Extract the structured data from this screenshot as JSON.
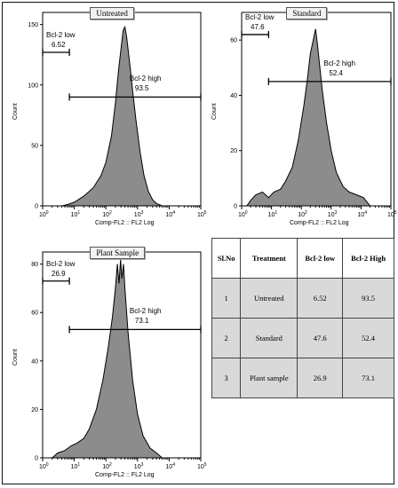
{
  "chart_data": [
    {
      "type": "area",
      "panel_title": "Untreated",
      "xlabel": "Comp-FL2 :: FL2 Log",
      "ylabel": "Count",
      "xscale": "log",
      "xlim": [
        1,
        100000
      ],
      "ylim": [
        0,
        160
      ],
      "yticks": [
        0,
        50,
        100,
        150
      ],
      "xtick_labels": [
        "10",
        "10",
        "10",
        "10",
        "10"
      ],
      "xtick_exps": [
        "0",
        "1",
        "2",
        "3",
        "4"
      ],
      "x_end_label": {
        "base": "10",
        "exp": "5"
      },
      "x": [
        4,
        6,
        10,
        20,
        40,
        70,
        100,
        150,
        200,
        250,
        300,
        350,
        400,
        450,
        500,
        600,
        700,
        900,
        1200,
        1600,
        2200,
        3000,
        4000,
        6000
      ],
      "y": [
        0,
        1,
        3,
        8,
        15,
        25,
        36,
        58,
        85,
        112,
        130,
        145,
        148,
        140,
        130,
        112,
        95,
        70,
        45,
        25,
        12,
        5,
        2,
        0
      ],
      "gates": [
        {
          "name": "Bcl-2 low",
          "value": "6.52",
          "x_range": [
            1,
            7
          ],
          "y": 127
        },
        {
          "name": "Bcl-2 high",
          "value": "93.5",
          "x_range": [
            7,
            100000
          ],
          "y": 90
        }
      ]
    },
    {
      "type": "area",
      "panel_title": "Standard",
      "xlabel": "Comp-FL2 :: FL2 Log",
      "ylabel": "Count",
      "xscale": "log",
      "xlim": [
        1,
        100000
      ],
      "ylim": [
        0,
        70
      ],
      "yticks": [
        0,
        20,
        40,
        60
      ],
      "xtick_labels": [
        "10",
        "10",
        "10",
        "10",
        "10"
      ],
      "xtick_exps": [
        "0",
        "1",
        "2",
        "3",
        "4"
      ],
      "x_end_label": {
        "base": "10",
        "exp": "5"
      },
      "x": [
        1.5,
        2,
        3,
        5,
        8,
        12,
        20,
        30,
        50,
        80,
        120,
        160,
        200,
        250,
        300,
        350,
        400,
        500,
        700,
        1000,
        1500,
        2500,
        4000,
        7000,
        12000,
        20000
      ],
      "y": [
        0,
        2,
        4,
        5,
        3,
        5,
        6,
        9,
        14,
        24,
        36,
        46,
        55,
        60,
        64,
        58,
        52,
        42,
        30,
        20,
        12,
        7,
        5,
        4,
        3,
        0
      ],
      "gates": [
        {
          "name": "Bcl-2 low",
          "value": "47.6",
          "x_range": [
            1,
            8
          ],
          "y": 62
        },
        {
          "name": "Bcl-2 high",
          "value": "52.4",
          "x_range": [
            8,
            100000
          ],
          "y": 45
        }
      ]
    },
    {
      "type": "area",
      "panel_title": "Plant Sample",
      "xlabel": "Comp-FL2 :: FL2 Log",
      "ylabel": "Count",
      "xscale": "log",
      "xlim": [
        1,
        100000
      ],
      "ylim": [
        0,
        85
      ],
      "yticks": [
        0,
        20,
        40,
        60,
        80
      ],
      "xtick_labels": [
        "10",
        "10",
        "10",
        "10",
        "10"
      ],
      "xtick_exps": [
        "0",
        "1",
        "2",
        "3",
        "4"
      ],
      "x_end_label": {
        "base": "10",
        "exp": "5"
      },
      "x": [
        2,
        3,
        5,
        8,
        12,
        20,
        30,
        50,
        80,
        120,
        160,
        200,
        230,
        260,
        290,
        320,
        360,
        400,
        500,
        700,
        1000,
        1500,
        2500,
        4000,
        6000
      ],
      "y": [
        0,
        2,
        3,
        5,
        6,
        8,
        12,
        20,
        32,
        46,
        58,
        70,
        80,
        72,
        82,
        74,
        80,
        70,
        52,
        32,
        18,
        9,
        4,
        2,
        0
      ],
      "gates": [
        {
          "name": "Bcl-2 low",
          "value": "26.9",
          "x_range": [
            1,
            7
          ],
          "y": 73
        },
        {
          "name": "Bcl-2 high",
          "value": "73.1",
          "x_range": [
            7,
            100000
          ],
          "y": 53
        }
      ]
    },
    {
      "type": "table",
      "columns": [
        "Sl.No",
        "Treatment",
        "Bcl-2 low",
        "Bcl-2 High"
      ],
      "rows": [
        [
          "1",
          "Untreated",
          "6.52",
          "93.5"
        ],
        [
          "2",
          "Standard",
          "47.6",
          "52.4"
        ],
        [
          "3",
          "Plant sample",
          "26.9",
          "73.1"
        ]
      ]
    }
  ],
  "colors": {
    "fill": "#8c8c8c",
    "stroke": "#000000",
    "table_cell": "#d9d9d9"
  }
}
